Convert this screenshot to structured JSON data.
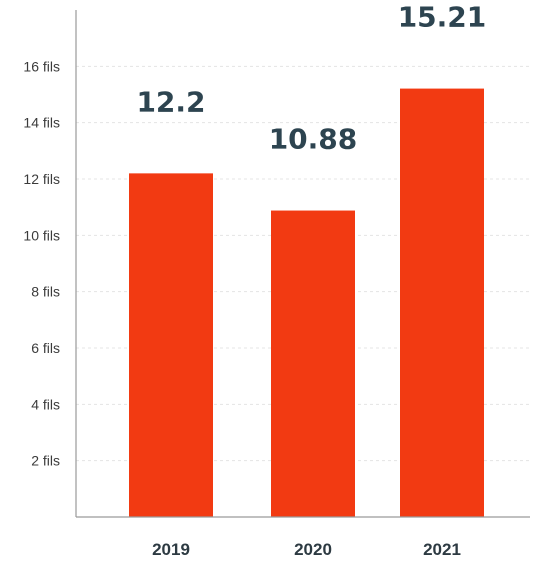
{
  "chart_data": {
    "type": "bar",
    "categories": [
      "2019",
      "2020",
      "2021"
    ],
    "values": [
      12.2,
      10.88,
      15.21
    ],
    "data_labels": [
      "12.2",
      "10.88",
      "15.21"
    ],
    "y_ticks": [
      {
        "value": 2,
        "label": "2 fils"
      },
      {
        "value": 4,
        "label": "4 fils"
      },
      {
        "value": 6,
        "label": "6 fils"
      },
      {
        "value": 8,
        "label": "8 fils"
      },
      {
        "value": 10,
        "label": "10 fils"
      },
      {
        "value": 12,
        "label": "12 fils"
      },
      {
        "value": 14,
        "label": "14 fils"
      },
      {
        "value": 16,
        "label": "16 fils"
      }
    ],
    "title": "",
    "xlabel": "",
    "ylabel": "",
    "ylim": [
      0,
      18
    ],
    "grid": true,
    "legend": "none",
    "bar_color": "#f23a12"
  }
}
